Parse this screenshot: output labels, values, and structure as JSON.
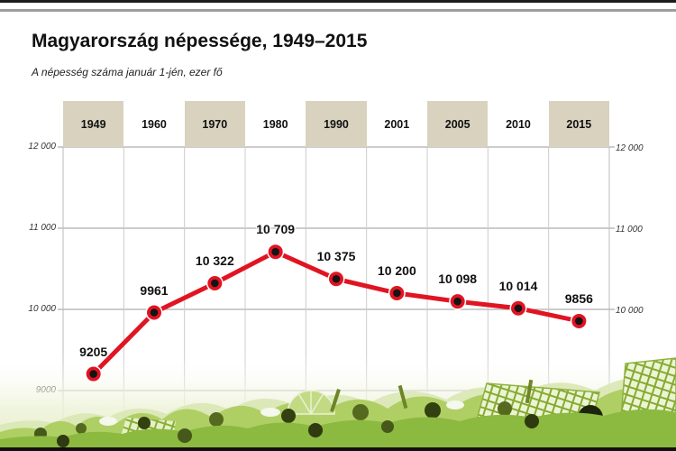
{
  "header": {
    "title": "Magyarország népessége, 1949–2015",
    "subtitle": "A népesség száma január 1-jén, ezer fő"
  },
  "chart_data": {
    "type": "line",
    "title": "Magyarország népessége, 1949–2015",
    "subtitle": "A népesség száma január 1-jén, ezer fő",
    "unit": "ezer fő",
    "categories": [
      "1949",
      "1960",
      "1970",
      "1980",
      "1990",
      "2001",
      "2005",
      "2010",
      "2015"
    ],
    "values": [
      9205,
      9961,
      10322,
      10709,
      10375,
      10200,
      10098,
      10014,
      9856
    ],
    "value_labels": [
      "9205",
      "9961",
      "10 322",
      "10 709",
      "10 375",
      "10 200",
      "10 098",
      "10 014",
      "9856"
    ],
    "ylim": [
      9000,
      12000
    ],
    "yticks": [
      {
        "value": 12000,
        "label": "12 000",
        "sides": "both"
      },
      {
        "value": 11000,
        "label": "11 000",
        "sides": "both"
      },
      {
        "value": 10000,
        "label": "10 000",
        "sides": "both"
      },
      {
        "value": 9000,
        "label": "9000",
        "sides": "left"
      }
    ],
    "grid": true,
    "legend": "none",
    "shaded_category_indexes": [
      0,
      2,
      4,
      6,
      8
    ],
    "colors": {
      "line": "#e11422",
      "marker_core": "#141414",
      "marker_halo": "#ffffff",
      "year_band": "#d8d2bf",
      "grid_h": "#9a9a9a",
      "grid_v": "#cccccc",
      "axis_text": "#333333",
      "label_text": "#111111"
    }
  }
}
